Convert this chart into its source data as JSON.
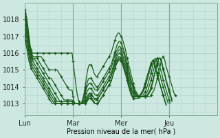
{
  "title": "",
  "xlabel": "Pression niveau de la mer( hPa )",
  "ylabel": "",
  "bg_color": "#cce8e0",
  "grid_color": "#aacccc",
  "line_color": "#1a5c1a",
  "marker": "+",
  "markersize": 3,
  "linewidth": 0.9,
  "ylim": [
    1012.3,
    1019.0
  ],
  "xtick_labels": [
    "Lun",
    "Mar",
    "Mer",
    "Jeu"
  ],
  "xtick_pos": [
    0,
    48,
    96,
    144
  ],
  "ytick_vals": [
    1013,
    1014,
    1015,
    1016,
    1017,
    1018
  ],
  "total_hours": 192,
  "series": [
    [
      1018.6,
      1018.3,
      1018.0,
      1017.5,
      1017.0,
      1016.5,
      1016.2,
      1016.0,
      1016.0,
      1016.0,
      1016.0,
      1016.0,
      1016.0,
      1016.0,
      1016.0,
      1016.0,
      1016.0,
      1016.0,
      1016.0,
      1016.0,
      1016.0,
      1016.0,
      1016.0,
      1016.0,
      1016.0,
      1016.0,
      1016.0,
      1016.0,
      1016.0,
      1016.0,
      1016.0,
      1016.0,
      1016.0,
      1016.0,
      1016.0,
      1016.0,
      1016.0,
      1016.0,
      1016.0,
      1016.0,
      1016.0,
      1016.0,
      1016.0,
      1016.0,
      1016.0,
      1016.0,
      1016.0,
      1016.0,
      1015.5,
      1015.0,
      1014.5,
      1014.0,
      1013.6,
      1013.3,
      1013.1,
      1013.0,
      1013.0,
      1013.1,
      1013.3,
      1013.6,
      1014.0,
      1014.4,
      1014.8,
      1015.1,
      1015.3,
      1015.3,
      1015.3,
      1015.2,
      1015.0,
      1014.8,
      1014.7,
      1014.6,
      1014.6,
      1014.7,
      1014.8,
      1014.9,
      1015.0,
      1015.1,
      1015.2,
      1015.3,
      1015.4,
      1015.5,
      1015.6,
      1015.7,
      1015.8,
      1015.9,
      1016.0,
      1016.2,
      1016.4,
      1016.6,
      1016.8,
      1017.0,
      1017.1,
      1017.2,
      1017.2,
      1017.1,
      1017.0,
      1016.9,
      1016.7,
      1016.5,
      1016.3,
      1016.0,
      1015.7,
      1015.5,
      1015.2,
      1015.0,
      1014.7,
      1014.5,
      1014.2,
      1014.0,
      1013.8,
      1013.7,
      1013.6,
      1013.5,
      1013.4,
      1013.4,
      1013.4,
      1013.4,
      1013.4,
      1013.4,
      1013.4,
      1013.4,
      1013.4,
      1013.4,
      1013.4,
      1013.4,
      1013.5,
      1013.6,
      1013.7,
      1013.8,
      1014.0,
      1014.2,
      1014.5,
      1014.7,
      1015.0,
      1015.2,
      1015.5,
      1015.7,
      1015.8,
      1015.7,
      1015.5,
      1015.2,
      1015.0,
      1014.8,
      1014.6,
      1014.4,
      1014.2,
      1014.0,
      1013.8,
      1013.6,
      1013.5,
      1013.4
    ],
    [
      1018.4,
      1018.1,
      1017.7,
      1017.3,
      1016.8,
      1016.4,
      1016.1,
      1015.9,
      1015.8,
      1015.8,
      1015.8,
      1015.8,
      1015.8,
      1015.8,
      1015.8,
      1015.8,
      1015.8,
      1015.7,
      1015.6,
      1015.5,
      1015.4,
      1015.3,
      1015.2,
      1015.1,
      1015.0,
      1015.0,
      1015.0,
      1015.0,
      1015.0,
      1015.0,
      1015.0,
      1015.0,
      1015.0,
      1014.9,
      1014.8,
      1014.7,
      1014.6,
      1014.5,
      1014.4,
      1014.3,
      1014.2,
      1014.1,
      1014.0,
      1013.9,
      1013.8,
      1013.8,
      1013.8,
      1013.8,
      1013.4,
      1013.1,
      1013.0,
      1013.0,
      1013.0,
      1013.0,
      1013.0,
      1013.0,
      1013.0,
      1013.1,
      1013.3,
      1013.5,
      1013.8,
      1014.0,
      1014.2,
      1014.4,
      1014.5,
      1014.5,
      1014.5,
      1014.4,
      1014.3,
      1014.2,
      1014.1,
      1014.0,
      1014.0,
      1014.0,
      1014.1,
      1014.2,
      1014.3,
      1014.4,
      1014.5,
      1014.6,
      1014.7,
      1014.8,
      1014.9,
      1015.0,
      1015.1,
      1015.2,
      1015.3,
      1015.5,
      1015.7,
      1015.9,
      1016.1,
      1016.3,
      1016.5,
      1016.6,
      1016.7,
      1016.7,
      1016.6,
      1016.5,
      1016.3,
      1016.1,
      1015.9,
      1015.6,
      1015.4,
      1015.1,
      1014.9,
      1014.6,
      1014.4,
      1014.2,
      1014.0,
      1013.8,
      1013.7,
      1013.6,
      1013.5,
      1013.4,
      1013.4,
      1013.4,
      1013.4,
      1013.4,
      1013.4,
      1013.4,
      1013.4,
      1013.4,
      1013.4,
      1013.5,
      1013.6,
      1013.7,
      1013.9,
      1014.1,
      1014.3,
      1014.6,
      1014.8,
      1015.1,
      1015.3,
      1015.6,
      1015.7,
      1015.7,
      1015.6,
      1015.4,
      1015.1,
      1014.9,
      1014.7,
      1014.4,
      1014.2,
      1014.0,
      1013.8,
      1013.6,
      1013.4,
      1013.2
    ],
    [
      1018.2,
      1017.9,
      1017.5,
      1017.1,
      1016.6,
      1016.3,
      1016.0,
      1015.8,
      1015.7,
      1015.7,
      1015.7,
      1015.7,
      1015.7,
      1015.6,
      1015.5,
      1015.4,
      1015.3,
      1015.2,
      1015.1,
      1015.0,
      1014.9,
      1014.8,
      1014.7,
      1014.6,
      1014.5,
      1014.5,
      1014.5,
      1014.4,
      1014.3,
      1014.2,
      1014.1,
      1014.0,
      1013.9,
      1013.8,
      1013.7,
      1013.6,
      1013.5,
      1013.4,
      1013.3,
      1013.2,
      1013.2,
      1013.2,
      1013.2,
      1013.2,
      1013.2,
      1013.2,
      1013.2,
      1013.2,
      1013.1,
      1013.0,
      1013.0,
      1013.0,
      1013.0,
      1013.0,
      1013.0,
      1013.0,
      1013.0,
      1013.1,
      1013.2,
      1013.4,
      1013.6,
      1013.8,
      1014.0,
      1014.1,
      1014.2,
      1014.2,
      1014.2,
      1014.1,
      1014.0,
      1013.9,
      1013.8,
      1013.8,
      1013.8,
      1013.8,
      1013.9,
      1014.0,
      1014.1,
      1014.2,
      1014.3,
      1014.4,
      1014.5,
      1014.6,
      1014.7,
      1014.8,
      1014.9,
      1015.0,
      1015.1,
      1015.3,
      1015.5,
      1015.7,
      1015.9,
      1016.1,
      1016.2,
      1016.3,
      1016.4,
      1016.4,
      1016.3,
      1016.2,
      1016.1,
      1015.9,
      1015.7,
      1015.4,
      1015.2,
      1015.0,
      1014.8,
      1014.5,
      1014.3,
      1014.1,
      1013.9,
      1013.7,
      1013.6,
      1013.5,
      1013.4,
      1013.4,
      1013.4,
      1013.4,
      1013.4,
      1013.4,
      1013.4,
      1013.4,
      1013.4,
      1013.4,
      1013.5,
      1013.6,
      1013.7,
      1013.8,
      1014.0,
      1014.2,
      1014.4,
      1014.7,
      1014.9,
      1015.2,
      1015.4,
      1015.6,
      1015.7,
      1015.7,
      1015.5,
      1015.3,
      1015.0,
      1014.8,
      1014.6,
      1014.3,
      1014.1,
      1013.9,
      1013.7,
      1013.5,
      1013.3,
      1013.1
    ],
    [
      1018.0,
      1017.7,
      1017.3,
      1016.9,
      1016.5,
      1016.1,
      1015.9,
      1015.7,
      1015.6,
      1015.6,
      1015.6,
      1015.5,
      1015.4,
      1015.3,
      1015.2,
      1015.1,
      1015.0,
      1014.9,
      1014.8,
      1014.7,
      1014.6,
      1014.5,
      1014.4,
      1014.3,
      1014.2,
      1014.1,
      1014.0,
      1013.9,
      1013.8,
      1013.7,
      1013.6,
      1013.5,
      1013.4,
      1013.3,
      1013.2,
      1013.1,
      1013.1,
      1013.1,
      1013.1,
      1013.1,
      1013.1,
      1013.1,
      1013.1,
      1013.1,
      1013.1,
      1013.1,
      1013.1,
      1013.1,
      1013.0,
      1013.0,
      1013.0,
      1013.0,
      1013.0,
      1013.0,
      1013.0,
      1013.0,
      1013.0,
      1013.0,
      1013.1,
      1013.2,
      1013.4,
      1013.5,
      1013.7,
      1013.8,
      1013.9,
      1013.9,
      1013.9,
      1013.8,
      1013.7,
      1013.6,
      1013.5,
      1013.5,
      1013.5,
      1013.5,
      1013.6,
      1013.7,
      1013.8,
      1013.9,
      1014.0,
      1014.1,
      1014.2,
      1014.3,
      1014.4,
      1014.5,
      1014.6,
      1014.7,
      1014.8,
      1015.0,
      1015.2,
      1015.4,
      1015.6,
      1015.8,
      1016.0,
      1016.1,
      1016.2,
      1016.2,
      1016.1,
      1016.0,
      1015.8,
      1015.6,
      1015.4,
      1015.2,
      1015.0,
      1014.7,
      1014.5,
      1014.3,
      1014.0,
      1013.8,
      1013.7,
      1013.6,
      1013.5,
      1013.4,
      1013.4,
      1013.4,
      1013.4,
      1013.4,
      1013.4,
      1013.4,
      1013.4,
      1013.4,
      1013.5,
      1013.6,
      1013.7,
      1013.8,
      1014.0,
      1014.2,
      1014.4,
      1014.6,
      1014.9,
      1015.1,
      1015.4,
      1015.6,
      1015.7,
      1015.6,
      1015.4,
      1015.1,
      1014.9,
      1014.7,
      1014.4,
      1014.2,
      1014.0,
      1013.8,
      1013.6,
      1013.4,
      1013.2,
      1013.0
    ],
    [
      1017.7,
      1017.4,
      1017.0,
      1016.6,
      1016.2,
      1015.9,
      1015.7,
      1015.6,
      1015.5,
      1015.4,
      1015.3,
      1015.2,
      1015.1,
      1015.0,
      1014.9,
      1014.8,
      1014.7,
      1014.6,
      1014.5,
      1014.4,
      1014.3,
      1014.2,
      1014.1,
      1014.0,
      1013.9,
      1013.8,
      1013.7,
      1013.6,
      1013.5,
      1013.4,
      1013.3,
      1013.2,
      1013.1,
      1013.1,
      1013.1,
      1013.1,
      1013.1,
      1013.1,
      1013.1,
      1013.1,
      1013.1,
      1013.1,
      1013.1,
      1013.1,
      1013.1,
      1013.1,
      1013.1,
      1013.1,
      1013.0,
      1013.0,
      1013.0,
      1013.0,
      1013.0,
      1013.0,
      1013.0,
      1013.0,
      1013.0,
      1013.0,
      1013.0,
      1013.1,
      1013.2,
      1013.3,
      1013.4,
      1013.5,
      1013.6,
      1013.6,
      1013.6,
      1013.5,
      1013.4,
      1013.3,
      1013.3,
      1013.3,
      1013.3,
      1013.3,
      1013.4,
      1013.5,
      1013.6,
      1013.7,
      1013.8,
      1013.9,
      1014.0,
      1014.1,
      1014.2,
      1014.3,
      1014.4,
      1014.5,
      1014.6,
      1014.8,
      1015.0,
      1015.2,
      1015.4,
      1015.6,
      1015.8,
      1015.9,
      1016.0,
      1016.0,
      1015.9,
      1015.8,
      1015.6,
      1015.4,
      1015.2,
      1015.0,
      1014.8,
      1014.5,
      1014.3,
      1014.1,
      1013.9,
      1013.7,
      1013.6,
      1013.5,
      1013.4,
      1013.4,
      1013.4,
      1013.4,
      1013.4,
      1013.4,
      1013.4,
      1013.4,
      1013.5,
      1013.6,
      1013.7,
      1013.8,
      1014.0,
      1014.2,
      1014.4,
      1014.6,
      1014.8,
      1015.1,
      1015.3,
      1015.5,
      1015.7,
      1015.6,
      1015.4,
      1015.1,
      1014.9,
      1014.7,
      1014.4,
      1014.2,
      1014.0,
      1013.8,
      1013.6,
      1013.4,
      1013.2,
      1013.0
    ],
    [
      1017.4,
      1017.1,
      1016.8,
      1016.4,
      1016.0,
      1015.7,
      1015.5,
      1015.4,
      1015.3,
      1015.2,
      1015.1,
      1015.0,
      1014.9,
      1014.8,
      1014.7,
      1014.6,
      1014.5,
      1014.4,
      1014.3,
      1014.2,
      1014.1,
      1014.0,
      1013.9,
      1013.8,
      1013.7,
      1013.6,
      1013.5,
      1013.4,
      1013.3,
      1013.2,
      1013.1,
      1013.0,
      1013.0,
      1013.0,
      1013.0,
      1013.0,
      1013.0,
      1013.0,
      1013.0,
      1013.0,
      1013.0,
      1013.0,
      1013.0,
      1013.0,
      1013.0,
      1013.0,
      1013.0,
      1013.0,
      1013.0,
      1013.0,
      1013.0,
      1013.0,
      1013.0,
      1013.0,
      1013.0,
      1013.0,
      1013.0,
      1013.0,
      1013.0,
      1013.0,
      1013.1,
      1013.2,
      1013.3,
      1013.4,
      1013.5,
      1013.5,
      1013.5,
      1013.5,
      1013.4,
      1013.3,
      1013.2,
      1013.2,
      1013.2,
      1013.3,
      1013.4,
      1013.5,
      1013.6,
      1013.7,
      1013.8,
      1013.9,
      1014.0,
      1014.1,
      1014.2,
      1014.3,
      1014.4,
      1014.5,
      1014.6,
      1014.8,
      1015.0,
      1015.2,
      1015.4,
      1015.5,
      1015.6,
      1015.7,
      1015.8,
      1015.8,
      1015.7,
      1015.6,
      1015.4,
      1015.2,
      1015.0,
      1014.8,
      1014.5,
      1014.3,
      1014.1,
      1013.9,
      1013.7,
      1013.5,
      1013.4,
      1013.4,
      1013.4,
      1013.4,
      1013.4,
      1013.4,
      1013.4,
      1013.4,
      1013.5,
      1013.6,
      1013.7,
      1013.8,
      1014.0,
      1014.2,
      1014.4,
      1014.6,
      1014.8,
      1015.0,
      1015.3,
      1015.5,
      1015.6,
      1015.5,
      1015.3,
      1015.0,
      1014.8,
      1014.6,
      1014.3,
      1014.1,
      1013.9,
      1013.7,
      1013.5,
      1013.3,
      1013.1,
      1012.9
    ],
    [
      1017.1,
      1016.8,
      1016.5,
      1016.1,
      1015.8,
      1015.5,
      1015.3,
      1015.2,
      1015.1,
      1015.0,
      1014.9,
      1014.8,
      1014.7,
      1014.6,
      1014.5,
      1014.4,
      1014.3,
      1014.2,
      1014.1,
      1014.0,
      1013.9,
      1013.8,
      1013.7,
      1013.6,
      1013.5,
      1013.4,
      1013.3,
      1013.2,
      1013.1,
      1013.0,
      1013.0,
      1013.0,
      1013.0,
      1013.0,
      1013.0,
      1013.0,
      1013.0,
      1013.0,
      1013.0,
      1013.0,
      1013.0,
      1013.0,
      1013.0,
      1013.0,
      1013.0,
      1013.0,
      1013.0,
      1013.0,
      1013.0,
      1013.0,
      1013.0,
      1013.0,
      1013.0,
      1013.0,
      1013.0,
      1013.0,
      1013.0,
      1013.0,
      1013.0,
      1013.0,
      1013.0,
      1013.1,
      1013.2,
      1013.3,
      1013.4,
      1013.4,
      1013.4,
      1013.3,
      1013.2,
      1013.1,
      1013.0,
      1013.0,
      1013.0,
      1013.0,
      1013.1,
      1013.2,
      1013.3,
      1013.4,
      1013.5,
      1013.6,
      1013.7,
      1013.8,
      1013.9,
      1014.0,
      1014.1,
      1014.2,
      1014.3,
      1014.5,
      1014.7,
      1014.9,
      1015.1,
      1015.3,
      1015.5,
      1015.6,
      1015.7,
      1015.7,
      1015.6,
      1015.5,
      1015.3,
      1015.1,
      1014.9,
      1014.7,
      1014.4,
      1014.2,
      1014.0,
      1013.8,
      1013.6,
      1013.5,
      1013.4,
      1013.4,
      1013.4,
      1013.4,
      1013.4,
      1013.4,
      1013.4,
      1013.5,
      1013.6,
      1013.7,
      1013.8,
      1014.0,
      1014.2,
      1014.4,
      1014.6,
      1014.8,
      1015.0,
      1015.2,
      1015.4,
      1015.5,
      1015.6,
      1015.5,
      1015.3,
      1015.0,
      1014.8,
      1014.6,
      1014.3,
      1014.1,
      1013.9,
      1013.7,
      1013.5,
      1013.3,
      1013.1,
      1012.9
    ],
    [
      1016.8,
      1016.5,
      1016.2,
      1015.8,
      1015.5,
      1015.3,
      1015.1,
      1015.0,
      1014.9,
      1014.8,
      1014.7,
      1014.6,
      1014.5,
      1014.4,
      1014.3,
      1014.2,
      1014.1,
      1014.0,
      1013.9,
      1013.8,
      1013.7,
      1013.6,
      1013.5,
      1013.4,
      1013.3,
      1013.2,
      1013.1,
      1013.0,
      1013.0,
      1013.0,
      1013.0,
      1013.0,
      1013.0,
      1013.0,
      1013.0,
      1013.0,
      1013.0,
      1013.0,
      1013.0,
      1013.0,
      1013.0,
      1013.0,
      1013.0,
      1013.0,
      1013.0,
      1013.0,
      1013.0,
      1013.0,
      1013.0,
      1013.0,
      1013.0,
      1013.0,
      1013.0,
      1013.0,
      1013.0,
      1013.0,
      1013.0,
      1013.0,
      1013.0,
      1013.0,
      1013.0,
      1013.0,
      1013.1,
      1013.2,
      1013.3,
      1013.3,
      1013.3,
      1013.2,
      1013.1,
      1013.0,
      1013.0,
      1013.0,
      1013.0,
      1013.0,
      1013.1,
      1013.2,
      1013.3,
      1013.4,
      1013.5,
      1013.6,
      1013.7,
      1013.8,
      1013.9,
      1014.0,
      1014.1,
      1014.2,
      1014.3,
      1014.5,
      1014.7,
      1014.9,
      1015.1,
      1015.3,
      1015.4,
      1015.5,
      1015.6,
      1015.6,
      1015.5,
      1015.4,
      1015.2,
      1015.0,
      1014.8,
      1014.6,
      1014.4,
      1014.1,
      1013.9,
      1013.7,
      1013.5,
      1013.4,
      1013.3,
      1013.3,
      1013.3,
      1013.3,
      1013.3,
      1013.3,
      1013.4,
      1013.5,
      1013.6,
      1013.7,
      1013.8,
      1014.0,
      1014.2,
      1014.4,
      1014.6,
      1014.8,
      1015.0,
      1015.2,
      1015.4,
      1015.5,
      1015.5,
      1015.4,
      1015.2,
      1015.0,
      1014.7,
      1014.5,
      1014.3,
      1014.1,
      1013.9,
      1013.7,
      1013.5,
      1013.3,
      1013.1,
      1012.9
    ]
  ]
}
